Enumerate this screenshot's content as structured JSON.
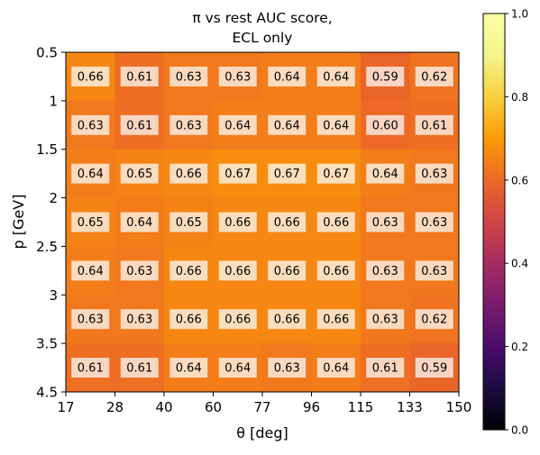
{
  "chart_data": {
    "type": "heatmap",
    "title_lines": [
      "π vs rest AUC score,",
      "ECL only"
    ],
    "xlabel": "θ [deg]",
    "ylabel": "p [GeV]",
    "x_edges": [
      "17",
      "28",
      "40",
      "60",
      "77",
      "96",
      "115",
      "133",
      "150"
    ],
    "y_edges": [
      "0.5",
      "1",
      "1.5",
      "2",
      "2.5",
      "3",
      "3.5",
      "4.5"
    ],
    "values": [
      [
        0.66,
        0.61,
        0.63,
        0.63,
        0.64,
        0.64,
        0.59,
        0.62
      ],
      [
        0.63,
        0.61,
        0.63,
        0.64,
        0.64,
        0.64,
        0.6,
        0.61
      ],
      [
        0.64,
        0.65,
        0.66,
        0.67,
        0.67,
        0.67,
        0.64,
        0.63
      ],
      [
        0.65,
        0.64,
        0.65,
        0.66,
        0.66,
        0.66,
        0.63,
        0.63
      ],
      [
        0.64,
        0.63,
        0.66,
        0.66,
        0.66,
        0.66,
        0.63,
        0.63
      ],
      [
        0.63,
        0.63,
        0.66,
        0.66,
        0.66,
        0.66,
        0.63,
        0.62
      ],
      [
        0.61,
        0.61,
        0.64,
        0.64,
        0.63,
        0.64,
        0.61,
        0.59
      ]
    ],
    "colormap": "inferno",
    "colorbar": {
      "range": [
        0.0,
        1.0
      ],
      "ticks": [
        "0.0",
        "0.2",
        "0.4",
        "0.6",
        "0.8",
        "1.0"
      ]
    },
    "grid": false
  }
}
